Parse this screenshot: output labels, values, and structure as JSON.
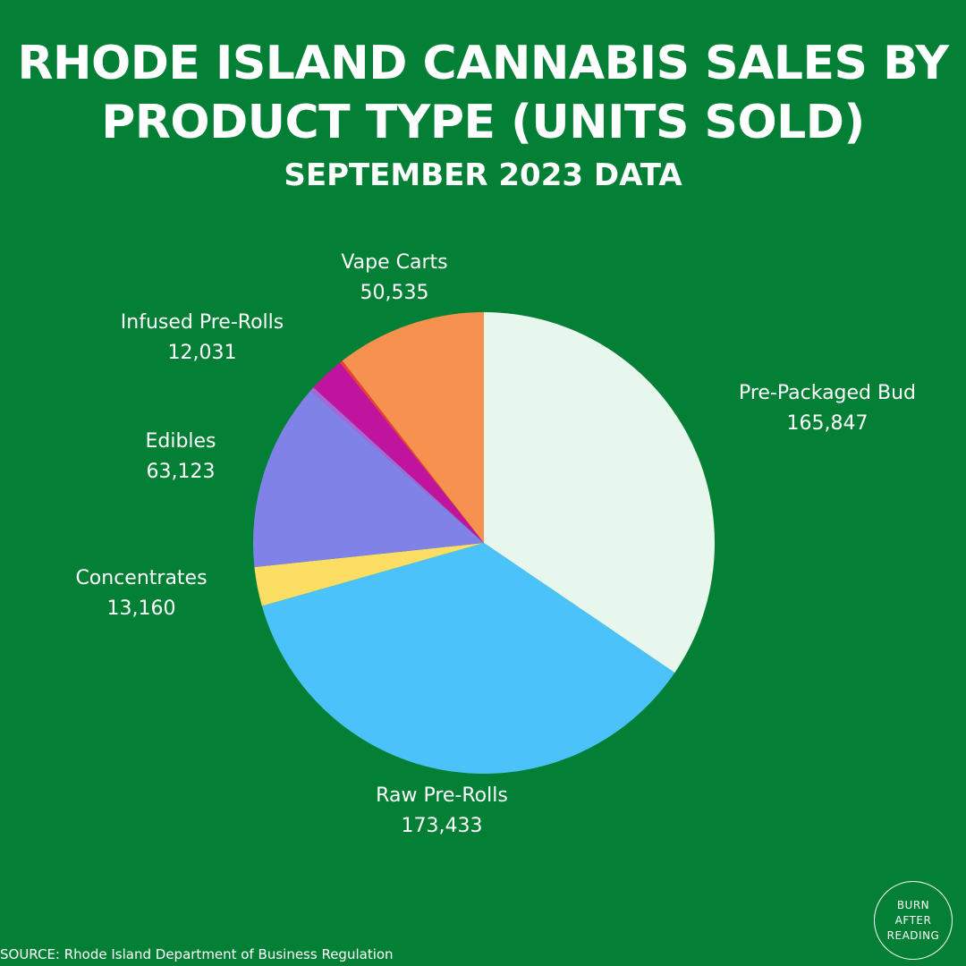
{
  "title": "RHODE ISLAND CANNABIS SALES BY PRODUCT TYPE (UNITS SOLD)",
  "subtitle": "SEPTEMBER 2023 DATA",
  "source": "SOURCE: Rhode Island Department of Business Regulation",
  "logo": {
    "line1": "BURN",
    "line2": "AFTER",
    "line3": "READING"
  },
  "chart_data": {
    "type": "pie",
    "start_angle_deg": 0,
    "direction": "clockwise",
    "legend": "none",
    "slices": [
      {
        "label": "Pre-Packaged Bud",
        "value": 165847,
        "value_label": "165,847",
        "color": "#e7f7ee",
        "show_label": true
      },
      {
        "label": "Raw Pre-Rolls",
        "value": 173433,
        "value_label": "173,433",
        "color": "#4bc3fa",
        "show_label": true
      },
      {
        "label": "Concentrates",
        "value": 13160,
        "value_label": "13,160",
        "color": "#fbde63",
        "show_label": true
      },
      {
        "label": "Edibles",
        "value": 63123,
        "value_label": "63,123",
        "color": "#8082e8",
        "show_label": true
      },
      {
        "label": "",
        "value": 1500,
        "value_label": "",
        "color": "#a866d9",
        "show_label": false
      },
      {
        "label": "Infused Pre-Rolls",
        "value": 12031,
        "value_label": "12,031",
        "color": "#c0149f",
        "show_label": true
      },
      {
        "label": "",
        "value": 1000,
        "value_label": "",
        "color": "#ee3b3b",
        "show_label": false
      },
      {
        "label": "Vape Carts",
        "value": 50535,
        "value_label": "50,535",
        "color": "#f6914f",
        "show_label": true
      }
    ]
  }
}
